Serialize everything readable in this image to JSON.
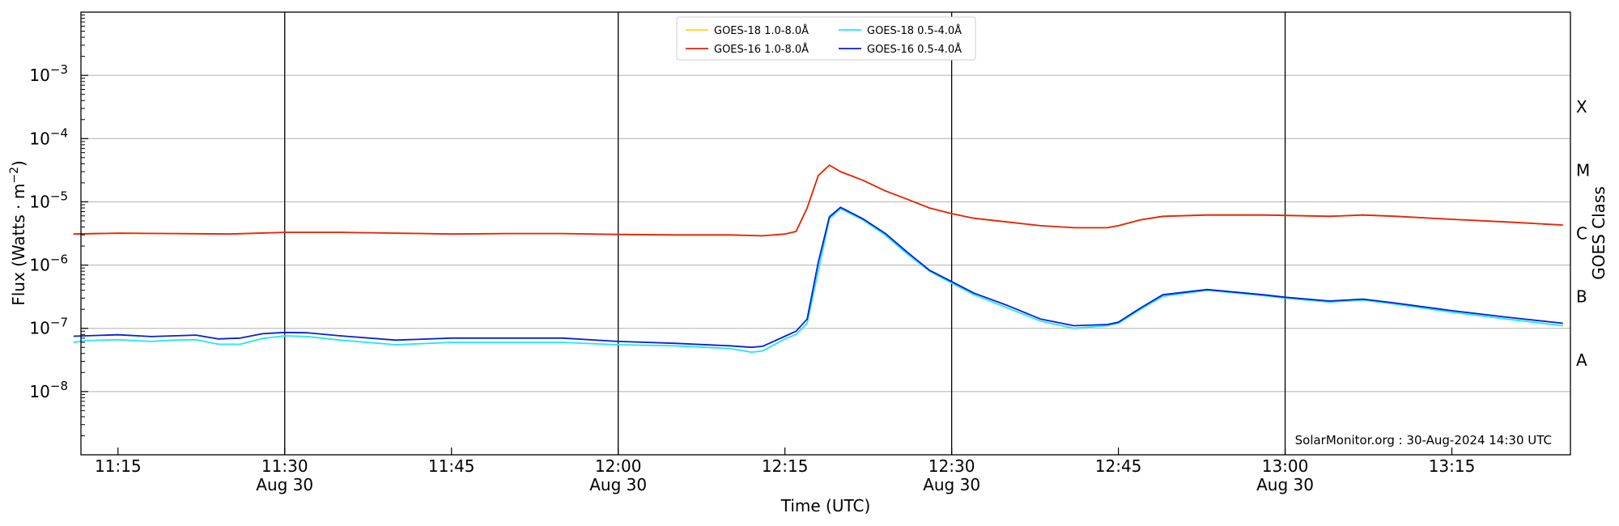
{
  "chart_data": {
    "type": "line",
    "xlabel": "Time (UTC)",
    "ylabel": "Flux (Watts · m",
    "ylabel_sup": "−2",
    "ylabel_close": ")",
    "right_label": "GOES Class",
    "y_scale": "log",
    "ylim": [
      1e-09,
      0.01
    ],
    "y_ticks": [
      {
        "value": 1e-08,
        "base": "10",
        "exp": "−8"
      },
      {
        "value": 1e-07,
        "base": "10",
        "exp": "−7"
      },
      {
        "value": 1e-06,
        "base": "10",
        "exp": "−6"
      },
      {
        "value": 1e-05,
        "base": "10",
        "exp": "−5"
      },
      {
        "value": 0.0001,
        "base": "10",
        "exp": "−4"
      },
      {
        "value": 0.001,
        "base": "10",
        "exp": "−3"
      }
    ],
    "goes_classes": [
      {
        "label": "A",
        "value": 3.16e-08
      },
      {
        "label": "B",
        "value": 3.16e-07
      },
      {
        "label": "C",
        "value": 3.16e-06
      },
      {
        "label": "M",
        "value": 3.16e-05
      },
      {
        "label": "X",
        "value": 0.000316
      }
    ],
    "xlim": [
      "11:11:40",
      "13:25:40"
    ],
    "x_ticks": [
      {
        "time": "11:15",
        "label": "11:15",
        "sub": ""
      },
      {
        "time": "11:30",
        "label": "11:30",
        "sub": "Aug 30"
      },
      {
        "time": "11:45",
        "label": "11:45",
        "sub": ""
      },
      {
        "time": "12:00",
        "label": "12:00",
        "sub": "Aug 30"
      },
      {
        "time": "12:15",
        "label": "12:15",
        "sub": ""
      },
      {
        "time": "12:30",
        "label": "12:30",
        "sub": "Aug 30"
      },
      {
        "time": "12:45",
        "label": "12:45",
        "sub": ""
      },
      {
        "time": "13:00",
        "label": "13:00",
        "sub": "Aug 30"
      },
      {
        "time": "13:15",
        "label": "13:15",
        "sub": ""
      }
    ],
    "vlines": [
      "11:30",
      "12:00",
      "12:30",
      "13:00"
    ],
    "grid": "horizontal at decades",
    "legend_position": "top-center",
    "credit": "SolarMonitor.org : 30-Aug-2024 14:30 UTC",
    "series": [
      {
        "name": "GOES-18 1.0-8.0Å",
        "color": "#ffd700",
        "x": [
          "11:11",
          "11:15",
          "11:20",
          "11:25",
          "11:30",
          "11:35",
          "11:40",
          "11:45",
          "11:50",
          "11:55",
          "12:00",
          "12:05",
          "12:10",
          "12:13",
          "12:15",
          "12:16",
          "12:17",
          "12:18",
          "12:19",
          "12:20",
          "12:22",
          "12:24",
          "12:26",
          "12:28",
          "12:30",
          "12:32",
          "12:35",
          "12:38",
          "12:41",
          "12:44",
          "12:45",
          "12:47",
          "12:49",
          "12:53",
          "12:58",
          "13:00",
          "13:04",
          "13:07",
          "13:10",
          "13:15",
          "13:20",
          "13:25"
        ],
        "y": [
          3.1e-06,
          3.2e-06,
          3.15e-06,
          3.1e-06,
          3.3e-06,
          3.3e-06,
          3.2e-06,
          3.1e-06,
          3.15e-06,
          3.15e-06,
          3.05e-06,
          3e-06,
          3e-06,
          2.9e-06,
          3.1e-06,
          3.4e-06,
          8e-06,
          2.6e-05,
          3.8e-05,
          3e-05,
          2.2e-05,
          1.5e-05,
          1.1e-05,
          8e-06,
          6.5e-06,
          5.5e-06,
          4.8e-06,
          4.2e-06,
          3.9e-06,
          3.9e-06,
          4.2e-06,
          5.2e-06,
          5.9e-06,
          6.2e-06,
          6.2e-06,
          6.1e-06,
          5.9e-06,
          6.2e-06,
          5.9e-06,
          5.3e-06,
          4.8e-06,
          4.3e-06
        ]
      },
      {
        "name": "GOES-16 1.0-8.0Å",
        "color": "#e8210c",
        "x": [
          "11:11",
          "11:15",
          "11:20",
          "11:25",
          "11:30",
          "11:35",
          "11:40",
          "11:45",
          "11:50",
          "11:55",
          "12:00",
          "12:05",
          "12:10",
          "12:13",
          "12:15",
          "12:16",
          "12:17",
          "12:18",
          "12:19",
          "12:20",
          "12:22",
          "12:24",
          "12:26",
          "12:28",
          "12:30",
          "12:32",
          "12:35",
          "12:38",
          "12:41",
          "12:44",
          "12:45",
          "12:47",
          "12:49",
          "12:53",
          "12:58",
          "13:00",
          "13:04",
          "13:07",
          "13:10",
          "13:15",
          "13:20",
          "13:25"
        ],
        "y": [
          3.1e-06,
          3.2e-06,
          3.15e-06,
          3.1e-06,
          3.3e-06,
          3.3e-06,
          3.2e-06,
          3.1e-06,
          3.15e-06,
          3.15e-06,
          3.05e-06,
          3e-06,
          3e-06,
          2.9e-06,
          3.1e-06,
          3.4e-06,
          8e-06,
          2.6e-05,
          3.8e-05,
          3e-05,
          2.2e-05,
          1.5e-05,
          1.1e-05,
          8e-06,
          6.5e-06,
          5.5e-06,
          4.8e-06,
          4.2e-06,
          3.9e-06,
          3.9e-06,
          4.2e-06,
          5.2e-06,
          5.9e-06,
          6.2e-06,
          6.2e-06,
          6.1e-06,
          5.9e-06,
          6.2e-06,
          5.9e-06,
          5.3e-06,
          4.8e-06,
          4.3e-06
        ]
      },
      {
        "name": "GOES-18 0.5-4.0Å",
        "color": "#1ee8f5",
        "x": [
          "11:11",
          "11:12",
          "11:15",
          "11:18",
          "11:20",
          "11:22",
          "11:24",
          "11:26",
          "11:28",
          "11:30",
          "11:32",
          "11:35",
          "11:40",
          "11:45",
          "11:50",
          "11:55",
          "12:00",
          "12:05",
          "12:10",
          "12:12",
          "12:13",
          "12:15",
          "12:16",
          "12:17",
          "12:18",
          "12:19",
          "12:20",
          "12:22",
          "12:24",
          "12:26",
          "12:28",
          "12:30",
          "12:32",
          "12:35",
          "12:38",
          "12:41",
          "12:44",
          "12:45",
          "12:47",
          "12:49",
          "12:53",
          "12:58",
          "13:00",
          "13:04",
          "13:07",
          "13:10",
          "13:15",
          "13:20",
          "13:25"
        ],
        "y": [
          6e-08,
          6.4e-08,
          6.6e-08,
          6.2e-08,
          6.5e-08,
          6.6e-08,
          5.6e-08,
          5.6e-08,
          6.9e-08,
          7.6e-08,
          7.4e-08,
          6.5e-08,
          5.5e-08,
          6e-08,
          6e-08,
          6e-08,
          5.5e-08,
          5.3e-08,
          4.8e-08,
          4.2e-08,
          4.4e-08,
          6.8e-08,
          8e-08,
          1.2e-07,
          8e-07,
          5.4e-06,
          7.8e-06,
          5.2e-06,
          3e-06,
          1.5e-06,
          8e-07,
          5.2e-07,
          3.4e-07,
          2.1e-07,
          1.3e-07,
          1e-07,
          1.1e-07,
          1.2e-07,
          2e-07,
          3.2e-07,
          4e-07,
          3.3e-07,
          3e-07,
          2.6e-07,
          2.8e-07,
          2.4e-07,
          1.8e-07,
          1.4e-07,
          1.1e-07
        ]
      },
      {
        "name": "GOES-16 0.5-4.0Å",
        "color": "#0a1fd6",
        "x": [
          "11:11",
          "11:12",
          "11:15",
          "11:18",
          "11:20",
          "11:22",
          "11:24",
          "11:26",
          "11:28",
          "11:30",
          "11:32",
          "11:35",
          "11:40",
          "11:45",
          "11:50",
          "11:55",
          "12:00",
          "12:05",
          "12:10",
          "12:12",
          "12:13",
          "12:15",
          "12:16",
          "12:17",
          "12:18",
          "12:19",
          "12:20",
          "12:22",
          "12:24",
          "12:26",
          "12:28",
          "12:30",
          "12:32",
          "12:35",
          "12:38",
          "12:41",
          "12:44",
          "12:45",
          "12:47",
          "12:49",
          "12:53",
          "12:58",
          "13:00",
          "13:04",
          "13:07",
          "13:10",
          "13:15",
          "13:20",
          "13:25"
        ],
        "y": [
          7.5e-08,
          7.6e-08,
          7.9e-08,
          7.4e-08,
          7.6e-08,
          7.8e-08,
          6.8e-08,
          7e-08,
          8.2e-08,
          8.6e-08,
          8.5e-08,
          7.6e-08,
          6.5e-08,
          7e-08,
          7e-08,
          7e-08,
          6.2e-08,
          5.8e-08,
          5.3e-08,
          5e-08,
          5.2e-08,
          7.5e-08,
          9e-08,
          1.4e-07,
          1.1e-06,
          5.8e-06,
          8.2e-06,
          5.4e-06,
          3.2e-06,
          1.6e-06,
          8.3e-07,
          5.5e-07,
          3.6e-07,
          2.3e-07,
          1.4e-07,
          1.1e-07,
          1.15e-07,
          1.25e-07,
          2.1e-07,
          3.4e-07,
          4.1e-07,
          3.4e-07,
          3.1e-07,
          2.7e-07,
          2.9e-07,
          2.5e-07,
          1.9e-07,
          1.5e-07,
          1.2e-07
        ]
      }
    ]
  }
}
